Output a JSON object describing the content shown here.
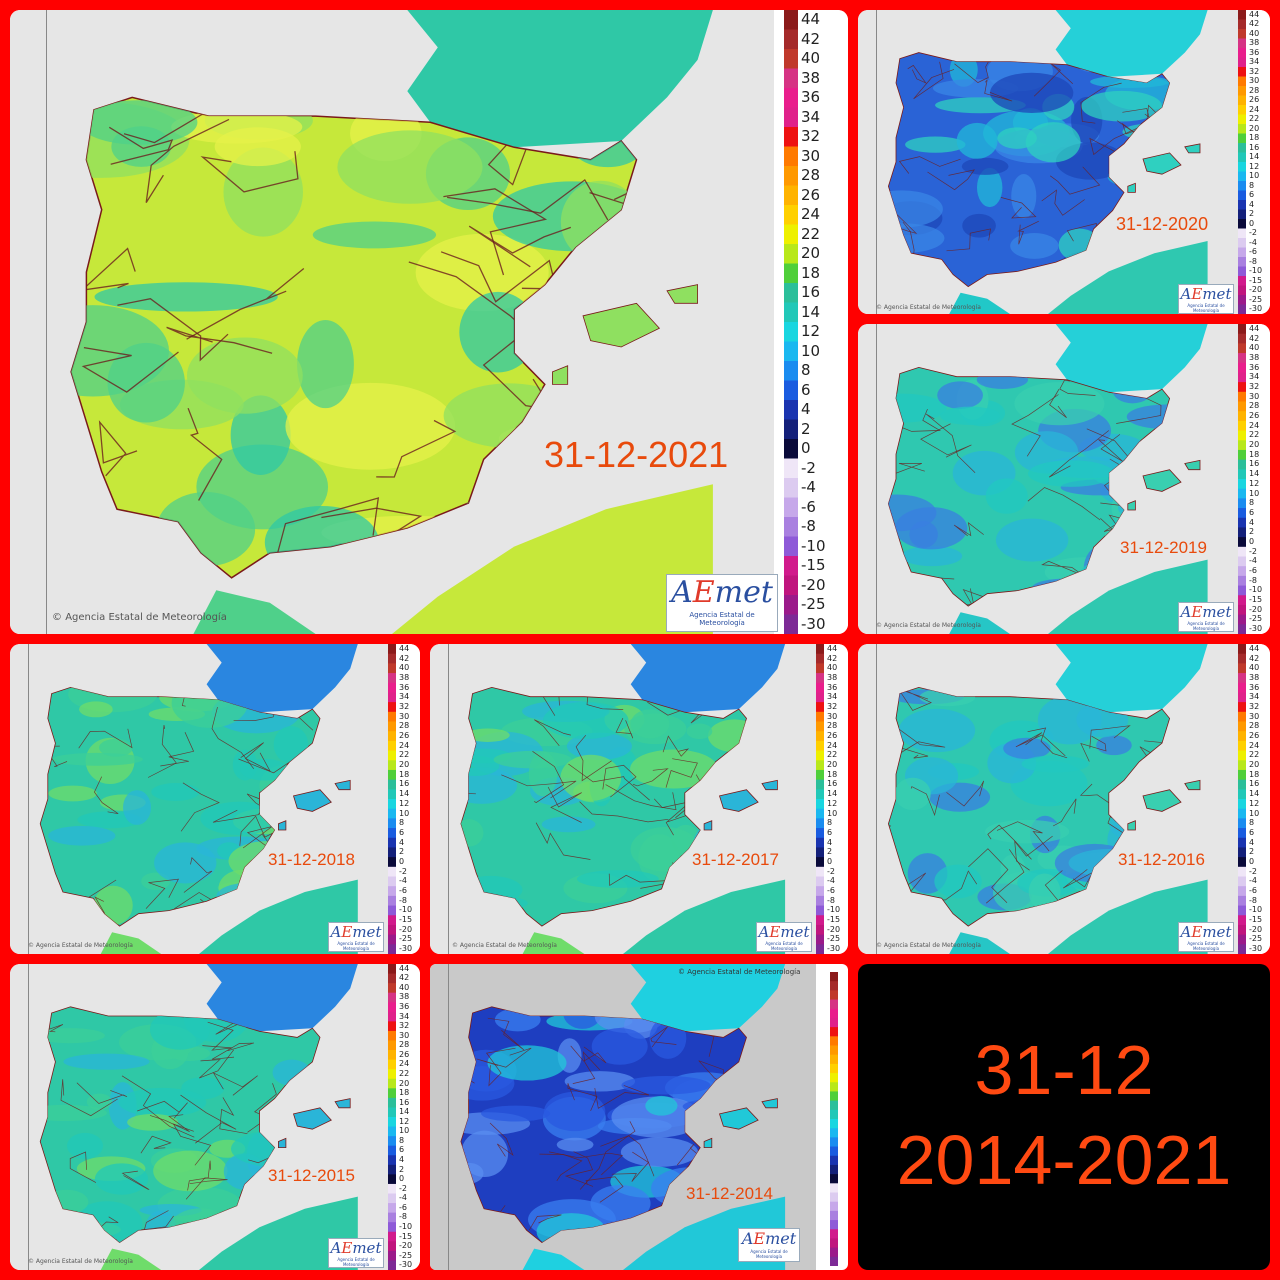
{
  "maps": [
    {
      "date": "31-12-2021",
      "credit": "Agencia Estatal de Meteorología",
      "logo": "AEmet",
      "logo_sub": "Agencia Estatal de Meteorología",
      "palette": "warm"
    },
    {
      "date": "31-12-2020",
      "credit": "Agencia Estatal de Meteorología",
      "logo": "AEmet",
      "logo_sub": "Agencia Estatal de Meteorología",
      "palette": "cold"
    },
    {
      "date": "31-12-2019",
      "credit": "Agencia Estatal de Meteorología",
      "logo": "AEmet",
      "logo_sub": "Agencia Estatal de Meteorología",
      "palette": "cool"
    },
    {
      "date": "31-12-2018",
      "credit": "Agencia Estatal de Meteorología",
      "logo": "AEmet",
      "logo_sub": "Agencia Estatal de Meteorología",
      "palette": "mild"
    },
    {
      "date": "31-12-2017",
      "credit": "Agencia Estatal de Meteorología",
      "logo": "AEmet",
      "logo_sub": "Agencia Estatal de Meteorología",
      "palette": "mild"
    },
    {
      "date": "31-12-2016",
      "credit": "Agencia Estatal de Meteorología",
      "logo": "AEmet",
      "logo_sub": "Agencia Estatal de Meteorología",
      "palette": "cool"
    },
    {
      "date": "31-12-2015",
      "credit": "Agencia Estatal de Meteorología",
      "logo": "AEmet",
      "logo_sub": "Agencia Estatal de Meteorología",
      "palette": "mild"
    },
    {
      "date": "31-12-2014",
      "credit": "Agencia Estatal de Meteorología",
      "logo": "AEmet",
      "logo_sub": "Agencia Estatal de Meteorología",
      "palette": "frozen"
    }
  ],
  "legend_values": [
    "44",
    "42",
    "40",
    "38",
    "36",
    "34",
    "32",
    "30",
    "28",
    "26",
    "24",
    "22",
    "20",
    "18",
    "16",
    "14",
    "12",
    "10",
    "8",
    "6",
    "4",
    "2",
    "0",
    "-2",
    "-4",
    "-6",
    "-8",
    "-10",
    "-15",
    "-20",
    "-25",
    "-30"
  ],
  "legend_colors": [
    "#8b1a1a",
    "#a52a2a",
    "#c0392b",
    "#d63384",
    "#e91e8c",
    "#e0218a",
    "#ee1111",
    "#ff7a00",
    "#ff9900",
    "#ffb300",
    "#ffd000",
    "#eef000",
    "#b8e81a",
    "#4fcf3a",
    "#2bbf9a",
    "#21c8b8",
    "#19d6e0",
    "#1ab8f0",
    "#1a8cf0",
    "#1a5ce0",
    "#1a34b0",
    "#14207a",
    "#0a0a3a",
    "#efe6f7",
    "#dccbf0",
    "#c6a8ea",
    "#a980e0",
    "#8e5ad8",
    "#d11a8c",
    "#c0157e",
    "#9b1a8a",
    "#7d2a96"
  ],
  "title": {
    "line1": "31-12",
    "line2": "2014-2021"
  },
  "palettes": {
    "warm": {
      "sea": "#e6e6e6",
      "land": [
        "#c6e83a",
        "#e6f24a",
        "#4fd08a",
        "#2fc8a6",
        "#8fe060"
      ],
      "africa": [
        "#c6e83a",
        "#4fd08a",
        "#2fc8a6"
      ],
      "france": [
        "#2fc8a6",
        "#6fdc6a",
        "#3bd0b0"
      ]
    },
    "cold": {
      "sea": "#e6e6e6",
      "land": [
        "#2a63d6",
        "#3a86e6",
        "#1e47b8",
        "#22b8d8",
        "#2fd0c0"
      ],
      "africa": [
        "#2fc8b0",
        "#21c8c8",
        "#3bd0b0"
      ],
      "france": [
        "#25d0d8",
        "#3ad6d0",
        "#1fc8d0"
      ]
    },
    "cool": {
      "sea": "#e6e6e6",
      "land": [
        "#2fc8b0",
        "#21c8c0",
        "#2ab5d8",
        "#3a7fe0",
        "#39cfb0"
      ],
      "africa": [
        "#2fc8b0",
        "#26c6c6",
        "#2ab5d8"
      ],
      "france": [
        "#25d0d8",
        "#1fc8d0",
        "#2ab5d8"
      ]
    },
    "mild": {
      "sea": "#e6e6e6",
      "land": [
        "#2fc8a6",
        "#3ccf98",
        "#21c8b8",
        "#6fdc6a",
        "#2ab5d8"
      ],
      "africa": [
        "#2fc8a6",
        "#6fdc6a",
        "#26c6b6"
      ],
      "france": [
        "#2a86e0",
        "#2ab5d8",
        "#1f74d8"
      ]
    },
    "frozen": {
      "sea": "#c9c9c9",
      "land": [
        "#1e3ec0",
        "#2a5ae0",
        "#3a7ff0",
        "#5a8ef0",
        "#21c8d8"
      ],
      "africa": [
        "#21c8d8",
        "#1fd0e0"
      ],
      "france": [
        "#1fd0e0",
        "#2ad6e6"
      ]
    }
  }
}
